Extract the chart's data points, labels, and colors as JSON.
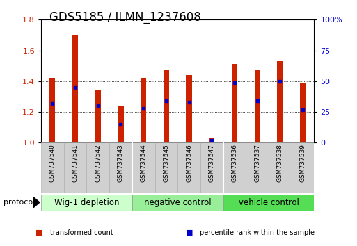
{
  "title": "GDS5185 / ILMN_1237608",
  "samples": [
    "GSM737540",
    "GSM737541",
    "GSM737542",
    "GSM737543",
    "GSM737544",
    "GSM737545",
    "GSM737546",
    "GSM737547",
    "GSM737536",
    "GSM737537",
    "GSM737538",
    "GSM737539"
  ],
  "transformed_counts": [
    1.42,
    1.7,
    1.34,
    1.24,
    1.42,
    1.47,
    1.44,
    1.03,
    1.51,
    1.47,
    1.53,
    1.39
  ],
  "percentile_ranks": [
    32,
    45,
    30,
    15,
    28,
    34,
    33,
    2,
    49,
    34,
    50,
    27
  ],
  "ylim_left": [
    1.0,
    1.8
  ],
  "ylim_right": [
    0,
    100
  ],
  "yticks_left": [
    1.0,
    1.2,
    1.4,
    1.6,
    1.8
  ],
  "yticks_right": [
    0,
    25,
    50,
    75,
    100
  ],
  "groups": [
    {
      "label": "Wig-1 depletion",
      "start": 0,
      "end": 4,
      "color": "#ccffcc"
    },
    {
      "label": "negative control",
      "start": 4,
      "end": 8,
      "color": "#99ee99"
    },
    {
      "label": "vehicle control",
      "start": 8,
      "end": 12,
      "color": "#55dd55"
    }
  ],
  "bar_color": "#cc2200",
  "dot_color": "#0000cc",
  "bar_width": 0.25,
  "protocol_label": "protocol",
  "legend_items": [
    {
      "label": "transformed count",
      "color": "#cc2200"
    },
    {
      "label": "percentile rank within the sample",
      "color": "#0000cc"
    }
  ],
  "background_color": "#ffffff",
  "plot_bg": "#ffffff",
  "ylabel_left_color": "#cc2200",
  "ylabel_right_color": "#0000cc",
  "title_fontsize": 12,
  "tick_fontsize": 8,
  "label_fontsize": 8,
  "group_label_fontsize": 8.5
}
